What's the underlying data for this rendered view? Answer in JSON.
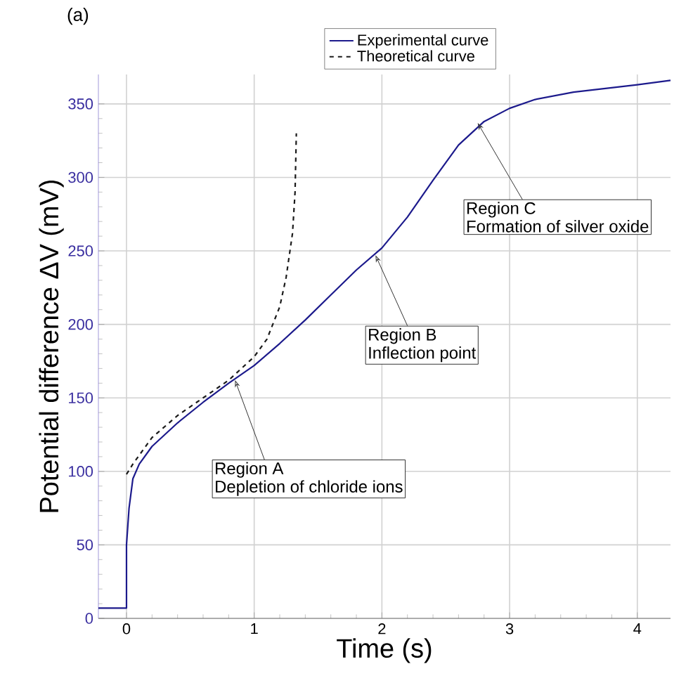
{
  "chart_data": {
    "type": "line",
    "xlabel": "Time (s)",
    "ylabel": "Potential difference ΔV  (mV)",
    "xlim": [
      -0.22,
      4.26
    ],
    "ylim": [
      0,
      370
    ],
    "xticks": [
      0,
      1,
      2,
      3,
      4
    ],
    "yticks": [
      0,
      50,
      100,
      150,
      200,
      250,
      300,
      350
    ],
    "grid": true,
    "legend": "top",
    "marker": "none",
    "series": [
      {
        "name": "Experimental curve",
        "color": "#1c1a8c",
        "line_style": "solid",
        "x": [
          -0.22,
          0,
          0,
          0.02,
          0.05,
          0.1,
          0.2,
          0.4,
          0.6,
          0.8,
          1.0,
          1.2,
          1.4,
          1.6,
          1.8,
          2.0,
          2.2,
          2.4,
          2.6,
          2.8,
          3.0,
          3.2,
          3.5,
          4.0,
          4.26
        ],
        "values": [
          7,
          7,
          50,
          75,
          95,
          105,
          117,
          133,
          147,
          160,
          172,
          187,
          203,
          220,
          237,
          252,
          273,
          298,
          322,
          338,
          347,
          353,
          358,
          363,
          366
        ]
      },
      {
        "name": "Theoretical curve",
        "color": "#1a1a1a",
        "line_style": "dashed",
        "x": [
          0,
          0.05,
          0.2,
          0.4,
          0.6,
          0.8,
          1.0,
          1.1,
          1.2,
          1.25,
          1.3,
          1.32,
          1.33
        ],
        "values": [
          98,
          105,
          123,
          138,
          150,
          162,
          178,
          190,
          212,
          232,
          262,
          290,
          330
        ]
      }
    ],
    "annotations": [
      "(a)",
      {
        "text": "Region A",
        "x": 0.85,
        "y": 162
      },
      "Depletion of chloride ions",
      {
        "text": "Region B",
        "x": 1.95,
        "y": 247
      },
      "Inflection point",
      {
        "text": "Region C",
        "x": 2.75,
        "y": 337
      },
      "Formation of silver oxide"
    ]
  }
}
